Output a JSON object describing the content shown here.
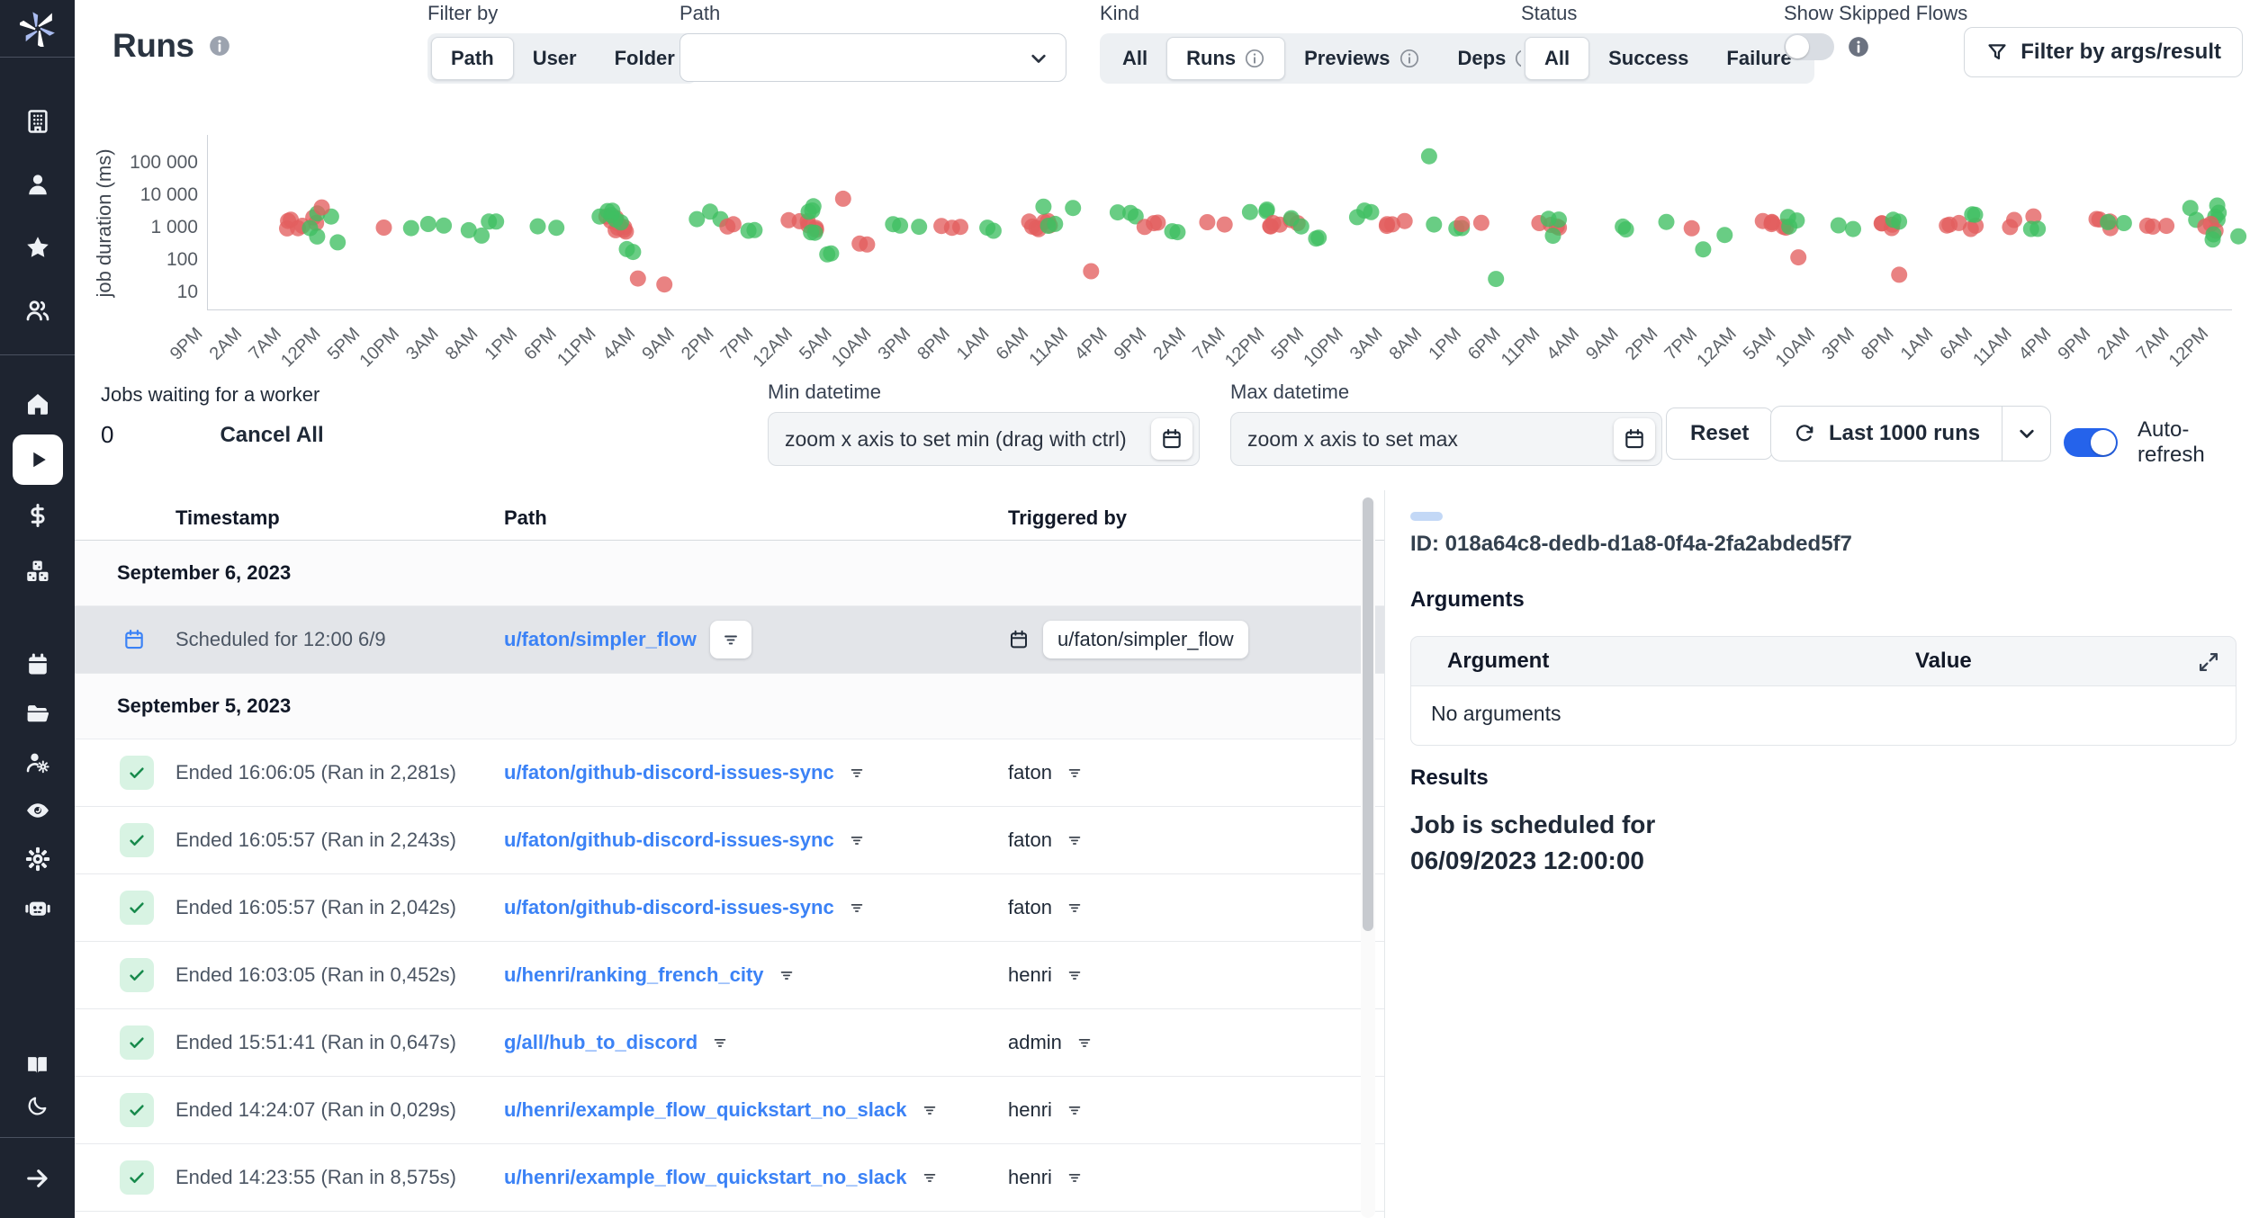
{
  "colors": {
    "sidebar_bg": "#1e2430",
    "accent_blue": "#2563eb",
    "link_blue": "#3b82f6",
    "success_green": "#3fbf62",
    "failure_red": "#e35f5f"
  },
  "sidebar": {
    "groups": [
      [
        {
          "icon": "building"
        },
        {
          "icon": "user"
        },
        {
          "icon": "star"
        },
        {
          "icon": "users"
        }
      ],
      [
        {
          "icon": "home"
        },
        {
          "icon": "play",
          "selected": true
        },
        {
          "icon": "dollar"
        },
        {
          "icon": "cubes"
        }
      ],
      [
        {
          "icon": "calendar"
        },
        {
          "icon": "folder"
        },
        {
          "icon": "user-cog"
        },
        {
          "icon": "eye"
        },
        {
          "icon": "settings"
        },
        {
          "icon": "robot"
        }
      ],
      [
        {
          "icon": "book"
        },
        {
          "icon": "moon"
        }
      ],
      [
        {
          "icon": "arrow-right"
        }
      ]
    ]
  },
  "header": {
    "title": "Runs",
    "filter_by": {
      "label": "Filter by",
      "selected": "Path",
      "options": [
        {
          "label": "Path"
        },
        {
          "label": "User"
        },
        {
          "label": "Folder"
        }
      ]
    },
    "path_filter": {
      "label": "Path",
      "value": ""
    },
    "kind": {
      "label": "Kind",
      "selected": "Runs",
      "options": [
        {
          "label": "All"
        },
        {
          "label": "Runs",
          "info": true
        },
        {
          "label": "Previews",
          "info": true
        },
        {
          "label": "Deps",
          "info": true
        }
      ]
    },
    "status": {
      "label": "Status",
      "selected": "All",
      "options": [
        {
          "label": "All"
        },
        {
          "label": "Success"
        },
        {
          "label": "Failure"
        }
      ]
    },
    "show_skipped": {
      "label": "Show Skipped Flows",
      "on": false
    },
    "args_filter_button": "Filter by args/result"
  },
  "chart_data": {
    "type": "scatter",
    "ylabel": "job duration (ms)",
    "y_scale": "log",
    "y_range": [
      10,
      100000
    ],
    "grid": false,
    "legend": "none",
    "y_ticks": [
      {
        "value": 100000,
        "label": "100 000"
      },
      {
        "value": 10000,
        "label": "10 000"
      },
      {
        "value": 1000,
        "label": "1 000"
      },
      {
        "value": 100,
        "label": "100"
      },
      {
        "value": 10,
        "label": "10"
      }
    ],
    "x_ticks": [
      "9PM",
      "2AM",
      "7AM",
      "12PM",
      "5PM",
      "10PM",
      "3AM",
      "8AM",
      "1PM",
      "6PM",
      "11PM",
      "4AM",
      "9AM",
      "2PM",
      "7PM",
      "12AM",
      "5AM",
      "10AM",
      "3PM",
      "8PM",
      "1AM",
      "6AM",
      "11AM",
      "4PM",
      "9PM",
      "2AM",
      "7AM",
      "12PM",
      "5PM",
      "10PM",
      "3AM",
      "8AM",
      "1PM",
      "6PM",
      "11PM",
      "4AM",
      "9AM",
      "2PM",
      "7PM",
      "12AM",
      "5AM",
      "10AM",
      "3PM",
      "8PM",
      "1AM",
      "6AM",
      "11AM",
      "4PM",
      "9PM",
      "2AM",
      "7AM",
      "12PM"
    ],
    "series": [
      {
        "name": "success",
        "color": "#3fbf62"
      },
      {
        "name": "failure",
        "color": "#e35f5f"
      }
    ],
    "clusters": [
      {
        "series": "failure",
        "x_pct": 4.6,
        "count": 7,
        "min_ms": 850,
        "max_ms": 2100
      },
      {
        "series": "success",
        "x_pct": 5.4,
        "count": 4,
        "min_ms": 450,
        "max_ms": 2800
      },
      {
        "series": "failure",
        "x_pct": 5.0,
        "count": 1,
        "min_ms": 4200,
        "max_ms": 4200
      },
      {
        "series": "success",
        "x_pct": 6.2,
        "count": 1,
        "min_ms": 350,
        "max_ms": 350
      },
      {
        "series": "failure",
        "x_pct": 8.6,
        "count": 1,
        "min_ms": 1000,
        "max_ms": 1000
      },
      {
        "series": "success",
        "x_pct": 10.3,
        "count": 2,
        "min_ms": 900,
        "max_ms": 1300
      },
      {
        "series": "success",
        "x_pct": 11.6,
        "count": 1,
        "min_ms": 1150,
        "max_ms": 1150
      },
      {
        "series": "success",
        "x_pct": 13.6,
        "count": 4,
        "min_ms": 260,
        "max_ms": 1600
      },
      {
        "series": "success",
        "x_pct": 16.9,
        "count": 2,
        "min_ms": 950,
        "max_ms": 1500
      },
      {
        "series": "failure",
        "x_pct": 20.2,
        "count": 9,
        "min_ms": 700,
        "max_ms": 2400
      },
      {
        "series": "success",
        "x_pct": 19.8,
        "count": 6,
        "min_ms": 500,
        "max_ms": 3400
      },
      {
        "series": "success",
        "x_pct": 21.4,
        "count": 2,
        "min_ms": 150,
        "max_ms": 260
      },
      {
        "series": "failure",
        "x_pct": 21.8,
        "count": 2,
        "min_ms": 12,
        "max_ms": 38
      },
      {
        "series": "success",
        "x_pct": 24.6,
        "count": 3,
        "min_ms": 1500,
        "max_ms": 3200
      },
      {
        "series": "failure",
        "x_pct": 25.6,
        "count": 2,
        "min_ms": 900,
        "max_ms": 1400
      },
      {
        "series": "success",
        "x_pct": 27.1,
        "count": 2,
        "min_ms": 500,
        "max_ms": 850
      },
      {
        "series": "failure",
        "x_pct": 29.4,
        "count": 6,
        "min_ms": 800,
        "max_ms": 1800
      },
      {
        "series": "success",
        "x_pct": 30.1,
        "count": 5,
        "min_ms": 600,
        "max_ms": 5200
      },
      {
        "series": "success",
        "x_pct": 30.6,
        "count": 2,
        "min_ms": 120,
        "max_ms": 210
      },
      {
        "series": "failure",
        "x_pct": 31.3,
        "count": 1,
        "min_ms": 7800,
        "max_ms": 7800
      },
      {
        "series": "failure",
        "x_pct": 32.0,
        "count": 2,
        "min_ms": 240,
        "max_ms": 420
      },
      {
        "series": "success",
        "x_pct": 34.4,
        "count": 3,
        "min_ms": 900,
        "max_ms": 1450
      },
      {
        "series": "failure",
        "x_pct": 36.6,
        "count": 3,
        "min_ms": 950,
        "max_ms": 1650
      },
      {
        "series": "success",
        "x_pct": 38.1,
        "count": 2,
        "min_ms": 700,
        "max_ms": 1100
      },
      {
        "series": "failure",
        "x_pct": 41.3,
        "count": 7,
        "min_ms": 800,
        "max_ms": 2000
      },
      {
        "series": "success",
        "x_pct": 42.0,
        "count": 4,
        "min_ms": 1000,
        "max_ms": 5800
      },
      {
        "series": "failure",
        "x_pct": 43.6,
        "count": 1,
        "min_ms": 45,
        "max_ms": 45
      },
      {
        "series": "success",
        "x_pct": 45.4,
        "count": 3,
        "min_ms": 1900,
        "max_ms": 3600
      },
      {
        "series": "failure",
        "x_pct": 46.6,
        "count": 3,
        "min_ms": 900,
        "max_ms": 1500
      },
      {
        "series": "success",
        "x_pct": 48.0,
        "count": 2,
        "min_ms": 700,
        "max_ms": 1050
      },
      {
        "series": "failure",
        "x_pct": 49.6,
        "count": 2,
        "min_ms": 1100,
        "max_ms": 1500
      },
      {
        "series": "success",
        "x_pct": 52.1,
        "count": 3,
        "min_ms": 2200,
        "max_ms": 4200
      },
      {
        "series": "failure",
        "x_pct": 53.2,
        "count": 6,
        "min_ms": 800,
        "max_ms": 1800
      },
      {
        "series": "success",
        "x_pct": 54.2,
        "count": 4,
        "min_ms": 420,
        "max_ms": 2600
      },
      {
        "series": "success",
        "x_pct": 57.4,
        "count": 3,
        "min_ms": 1500,
        "max_ms": 3900
      },
      {
        "series": "failure",
        "x_pct": 58.6,
        "count": 4,
        "min_ms": 900,
        "max_ms": 1600
      },
      {
        "series": "success",
        "x_pct": 60.3,
        "count": 1,
        "min_ms": 160000,
        "max_ms": 160000
      },
      {
        "series": "success",
        "x_pct": 61.2,
        "count": 3,
        "min_ms": 700,
        "max_ms": 1250
      },
      {
        "series": "failure",
        "x_pct": 62.2,
        "count": 2,
        "min_ms": 1000,
        "max_ms": 1400
      },
      {
        "series": "success",
        "x_pct": 63.1,
        "count": 1,
        "min_ms": 26,
        "max_ms": 26
      },
      {
        "series": "failure",
        "x_pct": 66.0,
        "count": 4,
        "min_ms": 900,
        "max_ms": 1700
      },
      {
        "series": "success",
        "x_pct": 66.7,
        "count": 3,
        "min_ms": 500,
        "max_ms": 2400
      },
      {
        "series": "success",
        "x_pct": 70.1,
        "count": 2,
        "min_ms": 800,
        "max_ms": 1200
      },
      {
        "series": "success",
        "x_pct": 72.3,
        "count": 1,
        "min_ms": 1500,
        "max_ms": 1500
      },
      {
        "series": "failure",
        "x_pct": 72.8,
        "count": 1,
        "min_ms": 950,
        "max_ms": 950
      },
      {
        "series": "success",
        "x_pct": 74.2,
        "count": 2,
        "min_ms": 160,
        "max_ms": 950
      },
      {
        "series": "failure",
        "x_pct": 77.4,
        "count": 6,
        "min_ms": 800,
        "max_ms": 2000
      },
      {
        "series": "success",
        "x_pct": 78.1,
        "count": 3,
        "min_ms": 1000,
        "max_ms": 2700
      },
      {
        "series": "failure",
        "x_pct": 79.2,
        "count": 1,
        "min_ms": 120,
        "max_ms": 120
      },
      {
        "series": "success",
        "x_pct": 80.6,
        "count": 2,
        "min_ms": 900,
        "max_ms": 1300
      },
      {
        "series": "failure",
        "x_pct": 82.5,
        "count": 4,
        "min_ms": 900,
        "max_ms": 1800
      },
      {
        "series": "success",
        "x_pct": 83.2,
        "count": 2,
        "min_ms": 1500,
        "max_ms": 2200
      },
      {
        "series": "failure",
        "x_pct": 84.1,
        "count": 1,
        "min_ms": 35,
        "max_ms": 35
      },
      {
        "series": "failure",
        "x_pct": 86.6,
        "count": 5,
        "min_ms": 850,
        "max_ms": 1700
      },
      {
        "series": "success",
        "x_pct": 87.2,
        "count": 2,
        "min_ms": 2000,
        "max_ms": 2900
      },
      {
        "series": "failure",
        "x_pct": 89.6,
        "count": 3,
        "min_ms": 900,
        "max_ms": 2400
      },
      {
        "series": "success",
        "x_pct": 90.2,
        "count": 2,
        "min_ms": 750,
        "max_ms": 1100
      },
      {
        "series": "failure",
        "x_pct": 93.4,
        "count": 4,
        "min_ms": 900,
        "max_ms": 1900
      },
      {
        "series": "success",
        "x_pct": 94.1,
        "count": 2,
        "min_ms": 1200,
        "max_ms": 2000
      },
      {
        "series": "failure",
        "x_pct": 96.5,
        "count": 3,
        "min_ms": 1000,
        "max_ms": 1800
      },
      {
        "series": "success",
        "x_pct": 98.6,
        "count": 6,
        "min_ms": 1400,
        "max_ms": 9000
      },
      {
        "series": "failure",
        "x_pct": 99.2,
        "count": 3,
        "min_ms": 800,
        "max_ms": 1500
      },
      {
        "series": "success",
        "x_pct": 99.6,
        "count": 3,
        "min_ms": 300,
        "max_ms": 800
      }
    ]
  },
  "queue": {
    "label": "Jobs waiting for a worker",
    "count": "0",
    "cancel_all": "Cancel All"
  },
  "datetime": {
    "min": {
      "label": "Min datetime",
      "placeholder": "zoom x axis to set min (drag with ctrl)"
    },
    "max": {
      "label": "Max datetime",
      "placeholder": "zoom x axis to set max"
    }
  },
  "actions": {
    "reset": "Reset",
    "runs_window": "Last 1000 runs",
    "auto_refresh": {
      "label": "Auto-refresh",
      "on": true
    }
  },
  "table": {
    "columns": [
      "Timestamp",
      "Path",
      "Triggered by"
    ],
    "groups": [
      {
        "date": "September 6, 2023",
        "rows": [
          {
            "kind": "scheduled",
            "selected": true,
            "timestamp": "Scheduled for 12:00 6/9",
            "path": "u/faton/simpler_flow",
            "triggered_by": "u/faton/simpler_flow",
            "triggered_by_icon": "calendar"
          }
        ]
      },
      {
        "date": "September 5, 2023",
        "rows": [
          {
            "kind": "success",
            "timestamp": "Ended 16:06:05 (Ran in 2,281s)",
            "path": "u/faton/github-discord-issues-sync",
            "triggered_by": "faton"
          },
          {
            "kind": "success",
            "timestamp": "Ended 16:05:57 (Ran in 2,243s)",
            "path": "u/faton/github-discord-issues-sync",
            "triggered_by": "faton"
          },
          {
            "kind": "success",
            "timestamp": "Ended 16:05:57 (Ran in 2,042s)",
            "path": "u/faton/github-discord-issues-sync",
            "triggered_by": "faton"
          },
          {
            "kind": "success",
            "timestamp": "Ended 16:03:05 (Ran in 0,452s)",
            "path": "u/henri/ranking_french_city",
            "triggered_by": "henri"
          },
          {
            "kind": "success",
            "timestamp": "Ended 15:51:41 (Ran in 0,647s)",
            "path": "g/all/hub_to_discord",
            "triggered_by": "admin"
          },
          {
            "kind": "success",
            "timestamp": "Ended 14:24:07 (Ran in 0,029s)",
            "path": "u/henri/example_flow_quickstart_no_slack",
            "triggered_by": "henri"
          },
          {
            "kind": "success",
            "timestamp": "Ended 14:23:55 (Ran in 8,575s)",
            "path": "u/henri/example_flow_quickstart_no_slack",
            "triggered_by": "henri"
          }
        ]
      }
    ]
  },
  "detail": {
    "id": "ID: 018a64c8-dedb-d1a8-0f4a-2fa2abded5f7",
    "arguments_title": "Arguments",
    "arguments_table": {
      "columns": [
        "Argument",
        "Value"
      ],
      "empty": "No arguments"
    },
    "results_title": "Results",
    "result_line1": "Job is scheduled for",
    "result_line2": "06/09/2023 12:00:00"
  }
}
